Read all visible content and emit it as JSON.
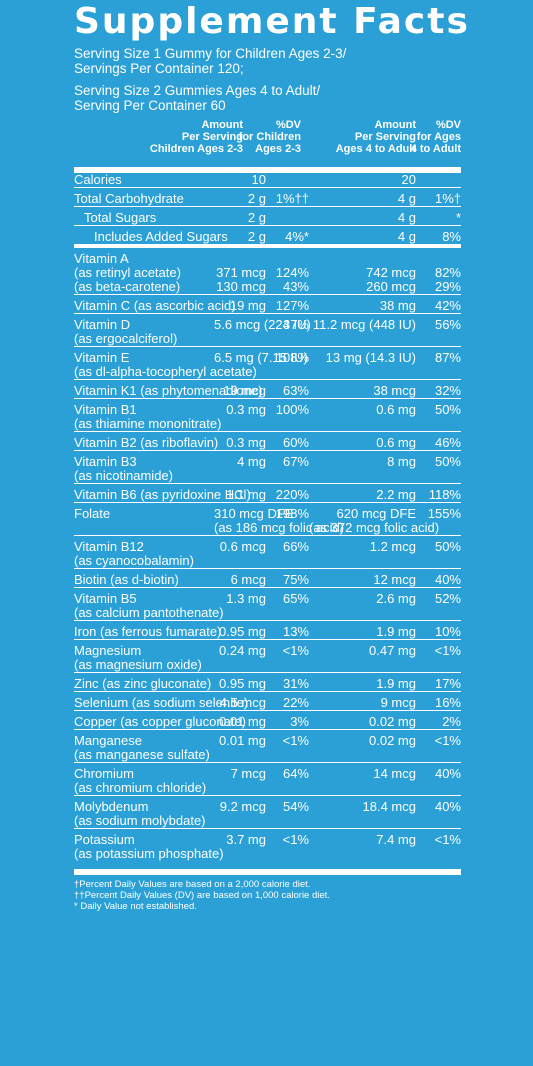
{
  "title": "Supplement Facts",
  "serving": [
    "Serving Size 1 Gummy for Children Ages 2-3/",
    "Servings Per Container 120;",
    "Serving Size 2 Gummies Ages 4 to Adult/",
    "Serving Per Container 60"
  ],
  "headers": [
    [
      "Amount",
      "Per Serving",
      "Children Ages 2-3"
    ],
    [
      "%DV",
      "for Children",
      "Ages 2-3"
    ],
    [
      "Amount",
      "Per Serving",
      "Ages 4 to Adult"
    ],
    [
      "%DV",
      "for Ages",
      "4 to Adult"
    ]
  ],
  "rows": [
    {
      "n": "Calories",
      "a1": "10",
      "d1": "",
      "a2": "20",
      "d2": "",
      "first": true
    },
    {
      "n": "Total Carbohydrate",
      "a1": "2 g",
      "d1": "1%††",
      "a2": "4 g",
      "d2": "1%†"
    },
    {
      "n": "Total Sugars",
      "a1": "2 g",
      "d1": "",
      "a2": "4 g",
      "d2": "*",
      "indent": 1
    },
    {
      "n": "Includes  Added Sugars",
      "a1": "2 g",
      "d1": "4%*",
      "a2": "4 g",
      "d2": "8%",
      "indent": 2
    },
    {
      "n": "Vitamin A",
      "a1": "",
      "d1": "",
      "a2": "",
      "d2": "",
      "thick": true
    },
    {
      "n": "(as retinyl acetate)",
      "a1": "371 mcg",
      "d1": "124%",
      "a2": "742 mcg",
      "d2": "82%",
      "cont": true
    },
    {
      "n": "(as beta-carotene)",
      "a1": "130 mcg",
      "d1": "43%",
      "a2": "260 mcg",
      "d2": "29%",
      "cont": true
    },
    {
      "n": "Vitamin C (as ascorbic acid)",
      "a1": "19 mg",
      "d1": "127%",
      "a2": "38 mg",
      "d2": "42%"
    },
    {
      "n": "Vitamin D",
      "a1": "5.6 mcg (224 IU)",
      "d1": "37%",
      "a2": "11.2 mcg (448 IU)",
      "d2": "56%"
    },
    {
      "n": "(as ergocalciferol)",
      "a1": "",
      "d1": "",
      "a2": "",
      "d2": "",
      "cont": true
    },
    {
      "n": "Vitamin E",
      "a1": "6.5 mg (7.15 IU)",
      "d1": "108%",
      "a2": "13 mg (14.3 IU)",
      "d2": "87%"
    },
    {
      "n": "(as dl-alpha-tocopheryl acetate)",
      "a1": "",
      "d1": "",
      "a2": "",
      "d2": "",
      "cont": true
    },
    {
      "n": "Vitamin K1 (as phytomenadione)",
      "a1": "19 mcg",
      "d1": "63%",
      "a2": "38 mcg",
      "d2": "32%"
    },
    {
      "n": "Vitamin B1",
      "a1": "0.3 mg",
      "d1": "100%",
      "a2": "0.6 mg",
      "d2": "50%"
    },
    {
      "n": "(as thiamine mononitrate)",
      "a1": "",
      "d1": "",
      "a2": "",
      "d2": "",
      "cont": true
    },
    {
      "n": "Vitamin B2 (as riboflavin)",
      "a1": "0.3 mg",
      "d1": "60%",
      "a2": "0.6 mg",
      "d2": "46%"
    },
    {
      "n": "Vitamin B3",
      "a1": "4 mg",
      "d1": "67%",
      "a2": "8 mg",
      "d2": "50%"
    },
    {
      "n": "(as nicotinamide)",
      "a1": "",
      "d1": "",
      "a2": "",
      "d2": "",
      "cont": true
    },
    {
      "n": "Vitamin B6 (as pyridoxine HCl)",
      "a1": "1.1 mg",
      "d1": "220%",
      "a2": "2.2 mg",
      "d2": "118%"
    },
    {
      "n": "Folate",
      "a1": "310 mcg DFE",
      "d1": "198%",
      "a2": "620 mcg DFE",
      "d2": "155%"
    },
    {
      "n": "",
      "a1": "(as 186 mcg folic acid)",
      "d1": "",
      "a2": "(as 372 mcg folic acid)",
      "d2": "",
      "cont": true
    },
    {
      "n": "Vitamin B12",
      "a1": "0.6 mcg",
      "d1": "66%",
      "a2": "1.2 mcg",
      "d2": "50%"
    },
    {
      "n": "(as cyanocobalamin)",
      "a1": "",
      "d1": "",
      "a2": "",
      "d2": "",
      "cont": true
    },
    {
      "n": "Biotin (as d-biotin)",
      "a1": "6 mcg",
      "d1": "75%",
      "a2": "12 mcg",
      "d2": "40%"
    },
    {
      "n": "Vitamin B5",
      "a1": "1.3 mg",
      "d1": "65%",
      "a2": "2.6 mg",
      "d2": "52%"
    },
    {
      "n": "(as calcium pantothenate)",
      "a1": "",
      "d1": "",
      "a2": "",
      "d2": "",
      "cont": true
    },
    {
      "n": "Iron (as ferrous fumarate)",
      "a1": "0.95 mg",
      "d1": "13%",
      "a2": "1.9 mg",
      "d2": "10%"
    },
    {
      "n": "Magnesium",
      "a1": "0.24 mg",
      "d1": "<1%",
      "a2": "0.47 mg",
      "d2": "<1%"
    },
    {
      "n": "(as magnesium oxide)",
      "a1": "",
      "d1": "",
      "a2": "",
      "d2": "",
      "cont": true
    },
    {
      "n": "Zinc (as zinc gluconate)",
      "a1": "0.95 mg",
      "d1": "31%",
      "a2": "1.9 mg",
      "d2": "17%"
    },
    {
      "n": "Selenium (as sodium selenite)",
      "a1": "4.5 mcg",
      "d1": "22%",
      "a2": "9 mcg",
      "d2": "16%"
    },
    {
      "n": "Copper (as copper gluconate)",
      "a1": "0.01 mg",
      "d1": "3%",
      "a2": "0.02 mg",
      "d2": "2%"
    },
    {
      "n": "Manganese",
      "a1": "0.01 mg",
      "d1": "<1%",
      "a2": "0.02 mg",
      "d2": "<1%"
    },
    {
      "n": "(as manganese sulfate)",
      "a1": "",
      "d1": "",
      "a2": "",
      "d2": "",
      "cont": true
    },
    {
      "n": "Chromium",
      "a1": "7 mcg",
      "d1": "64%",
      "a2": "14 mcg",
      "d2": "40%"
    },
    {
      "n": "(as chromium chloride)",
      "a1": "",
      "d1": "",
      "a2": "",
      "d2": "",
      "cont": true
    },
    {
      "n": "Molybdenum",
      "a1": "9.2 mcg",
      "d1": "54%",
      "a2": "18.4 mcg",
      "d2": "40%"
    },
    {
      "n": "(as sodium molybdate)",
      "a1": "",
      "d1": "",
      "a2": "",
      "d2": "",
      "cont": true
    },
    {
      "n": "Potassium",
      "a1": "3.7 mg",
      "d1": "<1%",
      "a2": "7.4 mg",
      "d2": "<1%"
    },
    {
      "n": "(as potassium phosphate)",
      "a1": "",
      "d1": "",
      "a2": "",
      "d2": "",
      "cont": true
    }
  ],
  "footnotes": [
    "†Percent Daily Values are based on a 2,000 calorie diet.",
    "††Percent Daily Values (DV) are based on 1,000 calorie diet.",
    "* Daily Value not established."
  ],
  "colors": {
    "background": "#2aa0d6",
    "text": "#ffffff"
  }
}
